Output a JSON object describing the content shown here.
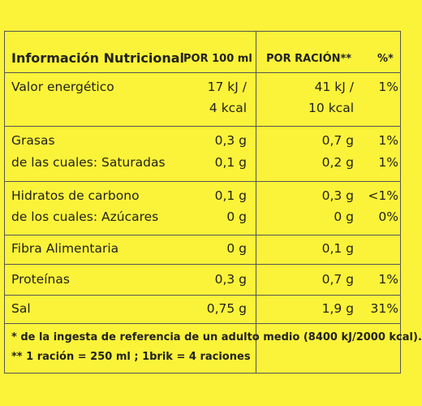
{
  "header": {
    "title": "Información Nutricional",
    "per100": "POR 100 ml",
    "perServing": "POR RACIÓN**",
    "pct": "%*"
  },
  "rows": [
    {
      "label": "Valor energético",
      "per100_l1": "17 kJ /",
      "per100_l2": "4 kcal",
      "serv_l1": "41 kJ /",
      "serv_l2": "10 kcal",
      "pct": "1%"
    },
    {
      "label": "Grasas",
      "per100": "0,3 g",
      "serv": "0,7 g",
      "pct": "1%"
    },
    {
      "label": "de las cuales: Saturadas",
      "per100": "0,1 g",
      "serv": "0,2 g",
      "pct": "1%"
    },
    {
      "label": "Hidratos de carbono",
      "per100": "0,1 g",
      "serv": "0,3 g",
      "pct": "<1%"
    },
    {
      "label": "de los cuales: Azúcares",
      "per100": "0 g",
      "serv": "0 g",
      "pct": "0%"
    },
    {
      "label": "Fibra Alimentaria",
      "per100": "0 g",
      "serv": "0,1 g",
      "pct": ""
    },
    {
      "label": "Proteínas",
      "per100": "0,3 g",
      "serv": "0,7 g",
      "pct": "1%"
    },
    {
      "label": "Sal",
      "per100": "0,75 g",
      "serv": "1,9 g",
      "pct": "31%"
    }
  ],
  "footnotes": {
    "f1": "* de la ingesta de referencia de un adulto medio (8400 kJ/2000 kcal).",
    "f2": "** 1 ración = 250 ml ; 1brik = 4 raciones"
  }
}
